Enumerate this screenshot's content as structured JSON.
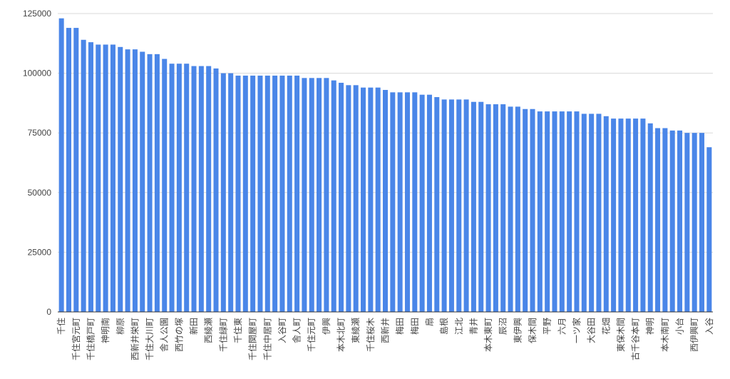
{
  "chart_data": {
    "type": "bar",
    "categories": [
      "千住",
      null,
      "千住宮元町",
      null,
      "千住橋戸町",
      null,
      "神明南",
      null,
      "柳原",
      null,
      "西新井栄町",
      null,
      "千住大川町",
      null,
      "舎人公園",
      null,
      "西竹の塚",
      null,
      "新田",
      null,
      "西綾瀬",
      null,
      "千住緑町",
      null,
      "千住東",
      null,
      "千住関屋町",
      null,
      "千住中居町",
      null,
      "入谷町",
      null,
      "舎人町",
      null,
      "千住元町",
      null,
      "伊興",
      null,
      "本木北町",
      null,
      "東綾瀬",
      null,
      "千住桜木",
      null,
      "西新井",
      null,
      "梅田",
      null,
      "梅田",
      null,
      "扇",
      null,
      "島根",
      null,
      "江北",
      null,
      "青井",
      null,
      "本木東町",
      null,
      "辰沼",
      null,
      "東伊興",
      null,
      "保木間",
      null,
      "平野",
      null,
      "六月",
      null,
      "一ツ家",
      null,
      "大谷田",
      null,
      "花畑",
      null,
      "東保木間",
      null,
      "古千谷本町",
      null,
      "神明",
      null,
      "本木南町",
      null,
      "小台",
      null,
      "西伊興町",
      null,
      "入谷"
    ],
    "values": [
      123000,
      119000,
      119000,
      114000,
      113000,
      112000,
      112000,
      112000,
      111000,
      110000,
      110000,
      109000,
      108000,
      108000,
      106000,
      104000,
      104000,
      104000,
      103000,
      103000,
      103000,
      102000,
      100000,
      100000,
      99000,
      99000,
      99000,
      99000,
      99000,
      99000,
      99000,
      99000,
      99000,
      98000,
      98000,
      98000,
      98000,
      97000,
      96000,
      95000,
      95000,
      94000,
      94000,
      94000,
      93000,
      92000,
      92000,
      92000,
      92000,
      91000,
      91000,
      90000,
      89000,
      89000,
      89000,
      89000,
      88000,
      88000,
      87000,
      87000,
      87000,
      86000,
      86000,
      85000,
      85000,
      84000,
      84000,
      84000,
      84000,
      84000,
      84000,
      83000,
      83000,
      83000,
      82000,
      81000,
      81000,
      81000,
      81000,
      81000,
      79000,
      77000,
      77000,
      76000,
      76000,
      75000,
      75000,
      75000,
      69000
    ],
    "color": "#4a86e8",
    "ylim": [
      0,
      125000
    ],
    "yticks": [
      0,
      25000,
      50000,
      75000,
      100000,
      125000
    ],
    "grid": true
  }
}
